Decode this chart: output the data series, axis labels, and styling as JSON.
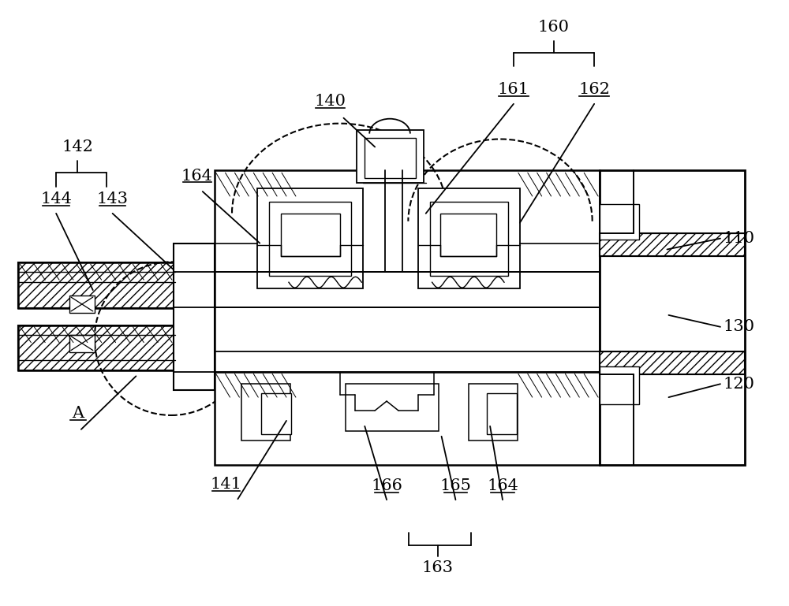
{
  "bg_color": "#ffffff",
  "line_color": "#000000",
  "figsize": [
    10.0,
    7.69
  ],
  "dpi": 100,
  "label_fontsize": 15
}
